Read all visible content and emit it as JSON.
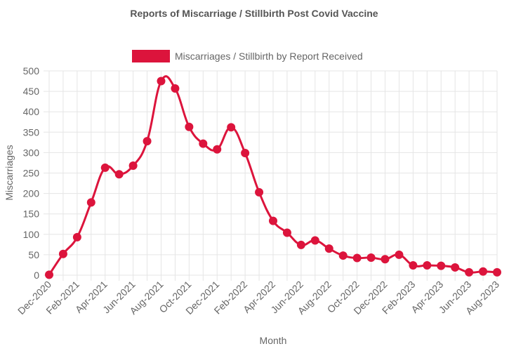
{
  "chart_data": {
    "type": "line",
    "title": "Reports of Miscarriage / Stillbirth Post Covid Vaccine",
    "xlabel": "Month",
    "ylabel": "Miscarriages",
    "ylim": [
      0,
      500
    ],
    "y_ticks": [
      0,
      50,
      100,
      150,
      200,
      250,
      300,
      350,
      400,
      450,
      500
    ],
    "categories": [
      "Dec-2020",
      "Jan-2021",
      "Feb-2021",
      "Mar-2021",
      "Apr-2021",
      "May-2021",
      "Jun-2021",
      "Jul-2021",
      "Aug-2021",
      "Sep-2021",
      "Oct-2021",
      "Nov-2021",
      "Dec-2021",
      "Jan-2022",
      "Feb-2022",
      "Mar-2022",
      "Apr-2022",
      "May-2022",
      "Jun-2022",
      "Jul-2022",
      "Aug-2022",
      "Sep-2022",
      "Oct-2022",
      "Nov-2022",
      "Dec-2022",
      "Jan-2023",
      "Feb-2023",
      "Mar-2023",
      "Apr-2023",
      "May-2023",
      "Jun-2023",
      "Jul-2023",
      "Aug-2023"
    ],
    "x_tick_labels": [
      "Dec-2020",
      "Feb-2021",
      "Apr-2021",
      "Jun-2021",
      "Aug-2021",
      "Oct-2021",
      "Dec-2021",
      "Feb-2022",
      "Apr-2022",
      "Jun-2022",
      "Aug-2022",
      "Oct-2022",
      "Dec-2022",
      "Feb-2023",
      "Apr-2023",
      "Jun-2023",
      "Aug-2023"
    ],
    "series": [
      {
        "name": "Miscarriages / Stillbirth by Report Received",
        "color": "#dc143c",
        "values": [
          1,
          52,
          93,
          178,
          263,
          247,
          268,
          328,
          475,
          457,
          363,
          322,
          308,
          362,
          299,
          203,
          133,
          104,
          74,
          85,
          65,
          48,
          42,
          43,
          39,
          50,
          24,
          24,
          23,
          19,
          7,
          9,
          7
        ]
      }
    ],
    "grid": true,
    "legend_position": "top"
  }
}
